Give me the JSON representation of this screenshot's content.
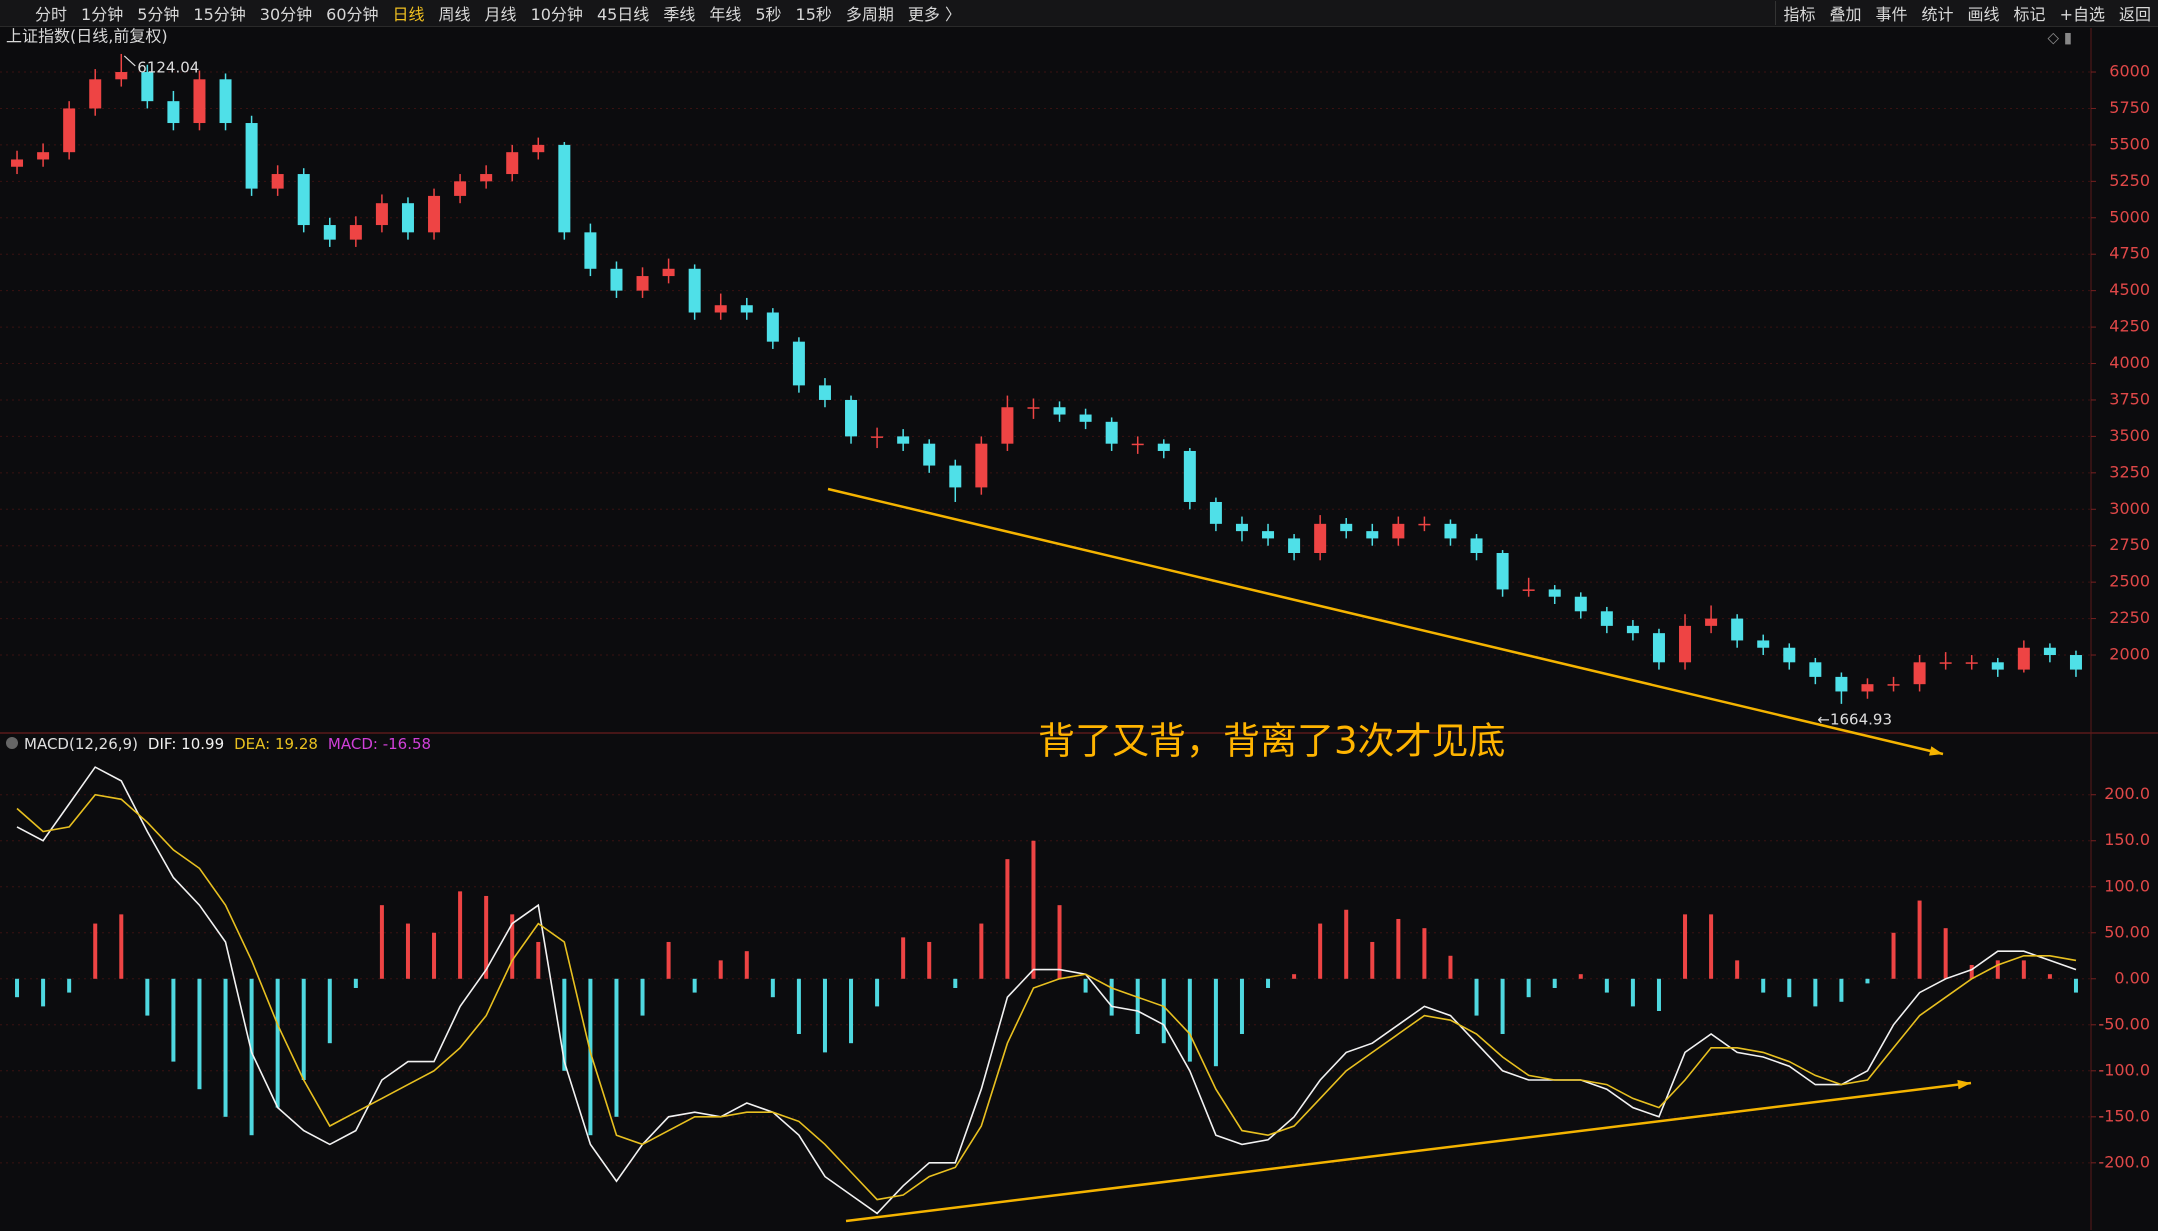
{
  "toolbar": {
    "left": [
      "分时",
      "1分钟",
      "5分钟",
      "15分钟",
      "30分钟",
      "60分钟",
      "日线",
      "周线",
      "月线",
      "10分钟",
      "45日线",
      "季线",
      "年线",
      "5秒",
      "15秒",
      "多周期",
      "更多 〉"
    ],
    "active": 6,
    "right": [
      "指标",
      "叠加",
      "事件",
      "统计",
      "画线",
      "标记",
      "+自选",
      "返回"
    ]
  },
  "annotation": "背了又背，背离了3次才见底",
  "chart_data": [
    {
      "type": "candlestick",
      "title": "上证指数(日线,前复权)",
      "up_color": "#ee4444",
      "down_color": "#4fe0e8",
      "ylim": [
        1465,
        6302
      ],
      "yticks": [
        2000,
        2250,
        2500,
        2750,
        3000,
        3250,
        3500,
        3750,
        4000,
        4250,
        4500,
        4750,
        5000,
        5250,
        5500,
        5750,
        6000
      ],
      "grid": true,
      "open": [
        5350,
        5400,
        5450,
        5750,
        5950,
        6000,
        5800,
        5650,
        5950,
        5650,
        5200,
        5300,
        4950,
        4850,
        4950,
        5100,
        4900,
        5150,
        5250,
        5300,
        5450,
        5500,
        4900,
        4650,
        4500,
        4600,
        4650,
        4350,
        4400,
        4350,
        4150,
        3850,
        3750,
        3500,
        3500,
        3450,
        3300,
        3150,
        3450,
        3700,
        3700,
        3650,
        3600,
        3450,
        3450,
        3400,
        3050,
        2900,
        2850,
        2800,
        2700,
        2900,
        2850,
        2800,
        2900,
        2900,
        2800,
        2700,
        2450,
        2450,
        2400,
        2300,
        2200,
        2150,
        1950,
        2200,
        2250,
        2100,
        2050,
        1950,
        1850,
        1750,
        1800,
        1800,
        1950,
        1950,
        1950,
        1900,
        2050,
        2000
      ],
      "high": [
        5460,
        5510,
        5800,
        6020,
        6124.04,
        6050,
        5870,
        6010,
        5990,
        5700,
        5360,
        5340,
        5000,
        5010,
        5160,
        5140,
        5200,
        5300,
        5360,
        5500,
        5550,
        5520,
        4960,
        4700,
        4660,
        4720,
        4680,
        4480,
        4450,
        4380,
        4180,
        3900,
        3780,
        3560,
        3550,
        3480,
        3340,
        3500,
        3780,
        3760,
        3740,
        3690,
        3630,
        3500,
        3480,
        3420,
        3080,
        2950,
        2900,
        2830,
        2960,
        2940,
        2900,
        2950,
        2950,
        2930,
        2830,
        2720,
        2530,
        2480,
        2430,
        2330,
        2240,
        2180,
        2280,
        2340,
        2280,
        2140,
        2080,
        1980,
        1880,
        1840,
        1850,
        2000,
        2020,
        2000,
        1980,
        2100,
        2080,
        2030
      ],
      "low": [
        5300,
        5350,
        5400,
        5700,
        5900,
        5750,
        5600,
        5600,
        5600,
        5150,
        5150,
        4900,
        4800,
        4800,
        4900,
        4850,
        4850,
        5100,
        5200,
        5250,
        5400,
        4850,
        4600,
        4450,
        4450,
        4550,
        4300,
        4300,
        4300,
        4100,
        3800,
        3700,
        3450,
        3420,
        3400,
        3250,
        3050,
        3100,
        3400,
        3620,
        3600,
        3550,
        3400,
        3380,
        3350,
        3000,
        2850,
        2780,
        2750,
        2650,
        2650,
        2800,
        2750,
        2750,
        2850,
        2750,
        2650,
        2400,
        2400,
        2350,
        2250,
        2150,
        2100,
        1900,
        1900,
        2150,
        2050,
        2000,
        1900,
        1800,
        1664.93,
        1700,
        1750,
        1750,
        1900,
        1900,
        1850,
        1880,
        1950,
        1850
      ],
      "close": [
        5400,
        5450,
        5750,
        5950,
        6000,
        5800,
        5650,
        5950,
        5650,
        5200,
        5300,
        4950,
        4850,
        4950,
        5100,
        4900,
        5150,
        5250,
        5300,
        5450,
        5500,
        4900,
        4650,
        4500,
        4600,
        4650,
        4350,
        4400,
        4350,
        4150,
        3850,
        3750,
        3500,
        3500,
        3450,
        3300,
        3150,
        3450,
        3700,
        3700,
        3650,
        3600,
        3450,
        3450,
        3400,
        3050,
        2900,
        2850,
        2800,
        2700,
        2900,
        2850,
        2800,
        2900,
        2900,
        2800,
        2700,
        2450,
        2450,
        2400,
        2300,
        2200,
        2150,
        1950,
        2200,
        2250,
        2100,
        2050,
        1950,
        1850,
        1750,
        1800,
        1800,
        1950,
        1950,
        1950,
        1900,
        2050,
        2000,
        1900
      ],
      "low_label": "←1664.93"
    },
    {
      "type": "macd",
      "title": "MACD(12,26,9)",
      "ylim": [
        -273,
        266
      ],
      "yticks": [
        {
          "value": -200,
          "label": "-200.0"
        },
        {
          "value": -150,
          "label": "-150.0"
        },
        {
          "value": -100,
          "label": "-100.0"
        },
        {
          "value": -50,
          "label": "-50.00"
        },
        {
          "value": 0,
          "label": "0.00"
        },
        {
          "value": 50,
          "label": "50.00"
        },
        {
          "value": 100,
          "label": "100.0"
        },
        {
          "value": 150,
          "label": "150.0"
        },
        {
          "value": 200,
          "label": "200.0"
        }
      ],
      "series": [
        {
          "legend_label": "DIF: 10.99",
          "color": "#f2f2f2",
          "values": [
            165,
            150,
            190,
            230,
            215,
            160,
            110,
            80,
            40,
            -80,
            -140,
            -165,
            -180,
            -165,
            -110,
            -90,
            -90,
            -30,
            10,
            60,
            80,
            -90,
            -180,
            -220,
            -180,
            -150,
            -145,
            -150,
            -135,
            -145,
            -170,
            -215,
            -235,
            -255,
            -225,
            -200,
            -200,
            -120,
            -20,
            10,
            10,
            5,
            -30,
            -35,
            -50,
            -100,
            -170,
            -180,
            -175,
            -150,
            -110,
            -80,
            -70,
            -50,
            -30,
            -40,
            -70,
            -100,
            -110,
            -110,
            -110,
            -120,
            -140,
            -150,
            -80,
            -60,
            -80,
            -85,
            -95,
            -115,
            -115,
            -100,
            -50,
            -15,
            0,
            10,
            30,
            30,
            20,
            10
          ]
        },
        {
          "legend_label": "DEA: 19.28",
          "color": "#e8c020",
          "values": [
            185,
            160,
            165,
            200,
            195,
            170,
            140,
            120,
            80,
            20,
            -50,
            -110,
            -160,
            -145,
            -130,
            -115,
            -100,
            -75,
            -40,
            20,
            60,
            40,
            -80,
            -170,
            -180,
            -165,
            -150,
            -150,
            -145,
            -145,
            -155,
            -180,
            -210,
            -240,
            -235,
            -215,
            -205,
            -160,
            -70,
            -10,
            0,
            5,
            -10,
            -20,
            -30,
            -60,
            -120,
            -165,
            -170,
            -160,
            -130,
            -100,
            -80,
            -60,
            -40,
            -45,
            -60,
            -85,
            -105,
            -110,
            -110,
            -115,
            -130,
            -140,
            -110,
            -75,
            -75,
            -80,
            -90,
            -105,
            -115,
            -110,
            -75,
            -40,
            -20,
            0,
            15,
            25,
            25,
            20
          ]
        },
        {
          "legend_label": "MACD: -16.58",
          "color": "#d040d8",
          "up_color": "#ee4444",
          "down_color": "#4fd8e0",
          "values": [
            -20,
            -30,
            -15,
            60,
            70,
            -40,
            -90,
            -120,
            -150,
            -170,
            -140,
            -110,
            -70,
            -10,
            80,
            60,
            50,
            95,
            90,
            70,
            40,
            -100,
            -170,
            -150,
            -40,
            40,
            -15,
            20,
            30,
            -20,
            -60,
            -80,
            -70,
            -30,
            45,
            40,
            -10,
            60,
            130,
            150,
            80,
            -15,
            -40,
            -60,
            -70,
            -90,
            -95,
            -60,
            -10,
            5,
            60,
            75,
            40,
            65,
            55,
            25,
            -40,
            -60,
            -20,
            -10,
            5,
            -15,
            -30,
            -35,
            70,
            70,
            20,
            -15,
            -20,
            -30,
            -25,
            -5,
            50,
            85,
            55,
            15,
            20,
            20,
            5,
            -15
          ]
        }
      ]
    }
  ]
}
